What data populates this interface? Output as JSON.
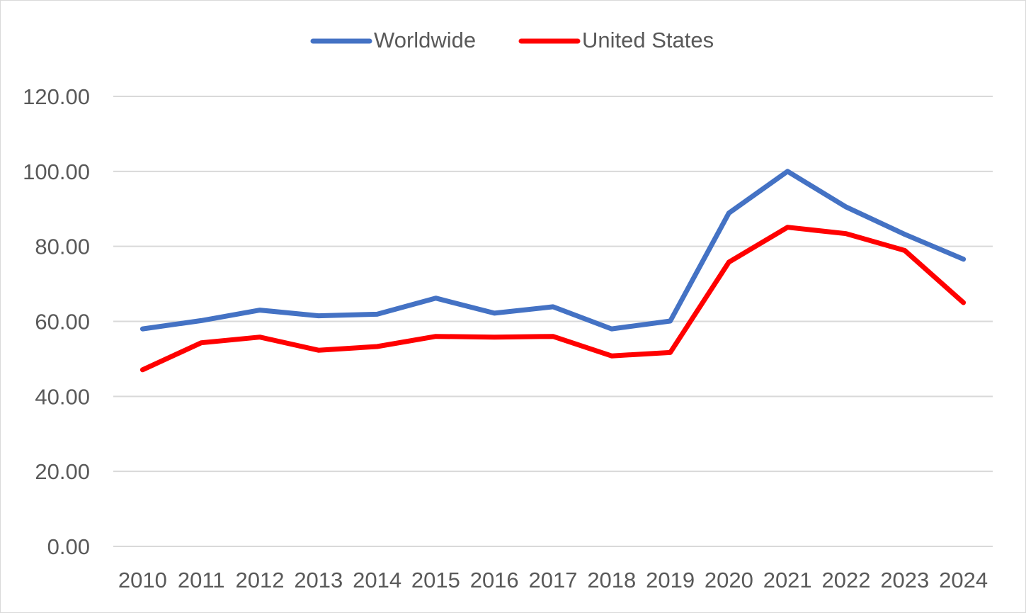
{
  "chart_data": {
    "type": "line",
    "title": "",
    "xlabel": "",
    "ylabel": "",
    "categories": [
      "2010",
      "2011",
      "2012",
      "2013",
      "2014",
      "2015",
      "2016",
      "2017",
      "2018",
      "2019",
      "2020",
      "2021",
      "2022",
      "2023",
      "2024"
    ],
    "ylim": [
      0,
      120
    ],
    "yticks": [
      "0.00",
      "20.00",
      "40.00",
      "60.00",
      "80.00",
      "100.00",
      "120.00"
    ],
    "grid": true,
    "legend_position": "top-center",
    "series": [
      {
        "name": "Worldwide",
        "color": "#4472C4",
        "values": [
          58.0,
          60.2,
          63.0,
          61.5,
          61.9,
          66.2,
          62.2,
          63.9,
          58.0,
          60.1,
          88.9,
          100.0,
          90.5,
          83.2,
          76.6
        ]
      },
      {
        "name": "United States",
        "color": "#FF0000",
        "values": [
          47.1,
          54.3,
          55.8,
          52.3,
          53.3,
          56.0,
          55.8,
          56.0,
          50.8,
          51.7,
          75.8,
          85.1,
          83.4,
          78.9,
          65.0
        ]
      }
    ]
  }
}
